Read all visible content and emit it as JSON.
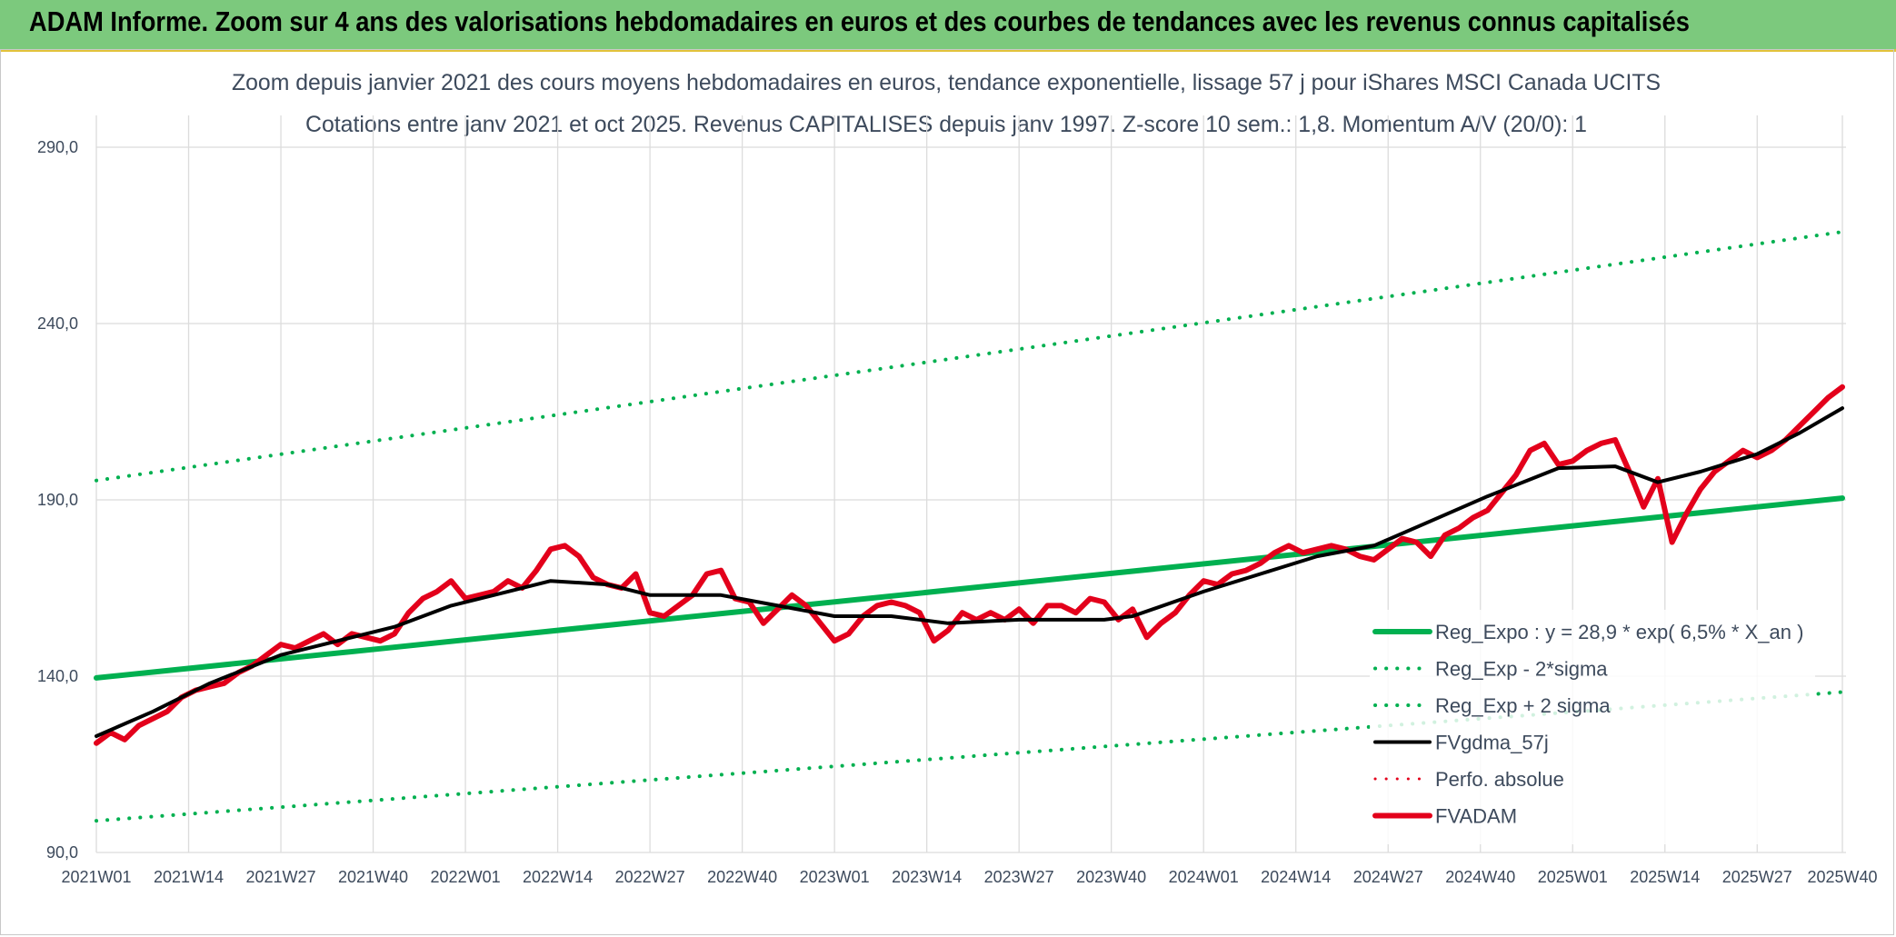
{
  "header": {
    "title": "ADAM Informe. Zoom sur 4 ans des valorisations hebdomadaires en euros et des courbes de tendances avec les revenus connus capitalisés"
  },
  "chart_data": {
    "type": "line",
    "title_line1": "Zoom depuis janvier 2021 des cours moyens hebdomadaires en euros, tendance exponentielle, lissage 57 j pour iShares MSCI Canada UCITS",
    "title_line2": "Cotations entre janv 2021 et oct 2025. Revenus CAPITALISES depuis janv 1997. Z-score 10 sem.: 1,8. Momentum A/V (20/0): 1",
    "ylim": [
      90,
      290
    ],
    "yticks": [
      90,
      140,
      190,
      240,
      290
    ],
    "ytick_labels": [
      "90,0",
      "140,0",
      "190,0",
      "240,0",
      "290,0"
    ],
    "x_start_label": "2021W01",
    "x_end_index": 246,
    "x_tick_labels": [
      "2021W01",
      "2021W14",
      "2021W27",
      "2021W40",
      "2022W01",
      "2022W14",
      "2022W27",
      "2022W40",
      "2023W01",
      "2023W14",
      "2023W27",
      "2023W40",
      "2024W01",
      "2024W14",
      "2024W27",
      "2024W40",
      "2025W01",
      "2025W14",
      "2025W27",
      "2025W40"
    ],
    "x_tick_indices": [
      0,
      13,
      26,
      39,
      52,
      65,
      78,
      91,
      104,
      117,
      130,
      143,
      156,
      169,
      182,
      195,
      208,
      221,
      234,
      246
    ],
    "series": [
      {
        "name": "Reg_Expo : y = 28,9 * exp( 6,5% *  X_an )",
        "color": "#00b050",
        "style": "solid",
        "width": 6,
        "points": [
          [
            0,
            139.5
          ],
          [
            246,
            190.5
          ]
        ]
      },
      {
        "name": "Reg_Exp - 2*sigma",
        "color": "#00b050",
        "style": "dotted",
        "width": 4,
        "points": [
          [
            0,
            99
          ],
          [
            246,
            135.5
          ]
        ]
      },
      {
        "name": "Reg_Exp + 2 sigma",
        "color": "#00b050",
        "style": "dotted",
        "width": 4,
        "points": [
          [
            0,
            195.5
          ],
          [
            246,
            266
          ]
        ]
      },
      {
        "name": "FVgdma_57j",
        "color": "#000000",
        "style": "solid",
        "width": 4,
        "points": [
          [
            0,
            123
          ],
          [
            8,
            130
          ],
          [
            16,
            138
          ],
          [
            26,
            146
          ],
          [
            34,
            150
          ],
          [
            42,
            154
          ],
          [
            50,
            160
          ],
          [
            58,
            164
          ],
          [
            64,
            167
          ],
          [
            72,
            166
          ],
          [
            78,
            163
          ],
          [
            88,
            163
          ],
          [
            96,
            160
          ],
          [
            104,
            157
          ],
          [
            112,
            157
          ],
          [
            120,
            155
          ],
          [
            130,
            156
          ],
          [
            142,
            156
          ],
          [
            146,
            157
          ],
          [
            156,
            164
          ],
          [
            164,
            169
          ],
          [
            172,
            174
          ],
          [
            180,
            177
          ],
          [
            188,
            184
          ],
          [
            196,
            191
          ],
          [
            206,
            199
          ],
          [
            214,
            199.5
          ],
          [
            220,
            195
          ],
          [
            226,
            198
          ],
          [
            234,
            203
          ],
          [
            240,
            209
          ],
          [
            246,
            216
          ]
        ]
      },
      {
        "name": "Perfo. absolue",
        "color": "#e3001b",
        "style": "dotted",
        "width": 3,
        "points": []
      },
      {
        "name": "FVADAM",
        "color": "#e3001b",
        "style": "solid",
        "width": 6,
        "points": [
          [
            0,
            121
          ],
          [
            2,
            124
          ],
          [
            4,
            122
          ],
          [
            6,
            126
          ],
          [
            8,
            128
          ],
          [
            10,
            130
          ],
          [
            12,
            134
          ],
          [
            14,
            136
          ],
          [
            16,
            137
          ],
          [
            18,
            138
          ],
          [
            20,
            141
          ],
          [
            22,
            143
          ],
          [
            24,
            146
          ],
          [
            26,
            149
          ],
          [
            28,
            148
          ],
          [
            30,
            150
          ],
          [
            32,
            152
          ],
          [
            34,
            149
          ],
          [
            36,
            152
          ],
          [
            38,
            151
          ],
          [
            40,
            150
          ],
          [
            42,
            152
          ],
          [
            44,
            158
          ],
          [
            46,
            162
          ],
          [
            48,
            164
          ],
          [
            50,
            167
          ],
          [
            52,
            162
          ],
          [
            54,
            163
          ],
          [
            56,
            164
          ],
          [
            58,
            167
          ],
          [
            60,
            165
          ],
          [
            62,
            170
          ],
          [
            64,
            176
          ],
          [
            66,
            177
          ],
          [
            68,
            174
          ],
          [
            70,
            168
          ],
          [
            72,
            166
          ],
          [
            74,
            165
          ],
          [
            76,
            169
          ],
          [
            78,
            158
          ],
          [
            80,
            157
          ],
          [
            82,
            160
          ],
          [
            84,
            163
          ],
          [
            86,
            169
          ],
          [
            88,
            170
          ],
          [
            90,
            162
          ],
          [
            92,
            161
          ],
          [
            94,
            155
          ],
          [
            96,
            159
          ],
          [
            98,
            163
          ],
          [
            100,
            160
          ],
          [
            102,
            155
          ],
          [
            104,
            150
          ],
          [
            106,
            152
          ],
          [
            108,
            157
          ],
          [
            110,
            160
          ],
          [
            112,
            161
          ],
          [
            114,
            160
          ],
          [
            116,
            158
          ],
          [
            118,
            150
          ],
          [
            120,
            153
          ],
          [
            122,
            158
          ],
          [
            124,
            156
          ],
          [
            126,
            158
          ],
          [
            128,
            156
          ],
          [
            130,
            159
          ],
          [
            132,
            155
          ],
          [
            134,
            160
          ],
          [
            136,
            160
          ],
          [
            138,
            158
          ],
          [
            140,
            162
          ],
          [
            142,
            161
          ],
          [
            144,
            156
          ],
          [
            146,
            159
          ],
          [
            148,
            151
          ],
          [
            150,
            155
          ],
          [
            152,
            158
          ],
          [
            154,
            163
          ],
          [
            156,
            167
          ],
          [
            158,
            166
          ],
          [
            160,
            169
          ],
          [
            162,
            170
          ],
          [
            164,
            172
          ],
          [
            166,
            175
          ],
          [
            168,
            177
          ],
          [
            170,
            175
          ],
          [
            172,
            176
          ],
          [
            174,
            177
          ],
          [
            176,
            176
          ],
          [
            178,
            174
          ],
          [
            180,
            173
          ],
          [
            182,
            176
          ],
          [
            184,
            179
          ],
          [
            186,
            178
          ],
          [
            188,
            174
          ],
          [
            190,
            180
          ],
          [
            192,
            182
          ],
          [
            194,
            185
          ],
          [
            196,
            187
          ],
          [
            198,
            192
          ],
          [
            200,
            197
          ],
          [
            202,
            204
          ],
          [
            204,
            206
          ],
          [
            206,
            200
          ],
          [
            208,
            201
          ],
          [
            210,
            204
          ],
          [
            212,
            206
          ],
          [
            214,
            207
          ],
          [
            216,
            198
          ],
          [
            218,
            188
          ],
          [
            220,
            196
          ],
          [
            222,
            178
          ],
          [
            224,
            186
          ],
          [
            226,
            193
          ],
          [
            228,
            198
          ],
          [
            230,
            201
          ],
          [
            232,
            204
          ],
          [
            234,
            202
          ],
          [
            236,
            204
          ],
          [
            238,
            207
          ],
          [
            240,
            211
          ],
          [
            242,
            215
          ],
          [
            244,
            219
          ],
          [
            246,
            222
          ]
        ]
      }
    ],
    "legend_position": "bottom-right"
  }
}
